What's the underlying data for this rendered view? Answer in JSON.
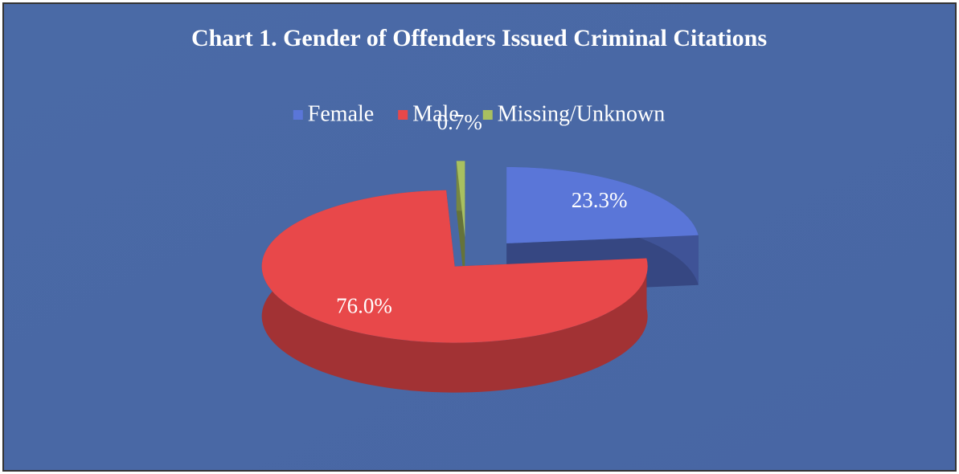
{
  "chart_data": {
    "type": "pie",
    "title": "Chart 1. Gender of Offenders Issued Criminal Citations",
    "categories": [
      "Female",
      "Male",
      "Missing/Unknown"
    ],
    "values": [
      23.3,
      76.0,
      0.7
    ],
    "value_labels": [
      "23.3%",
      "76.0%",
      "0.7%"
    ],
    "colors": [
      "#5a76d8",
      "#e8484a",
      "#a8c060"
    ],
    "legend": "top"
  }
}
